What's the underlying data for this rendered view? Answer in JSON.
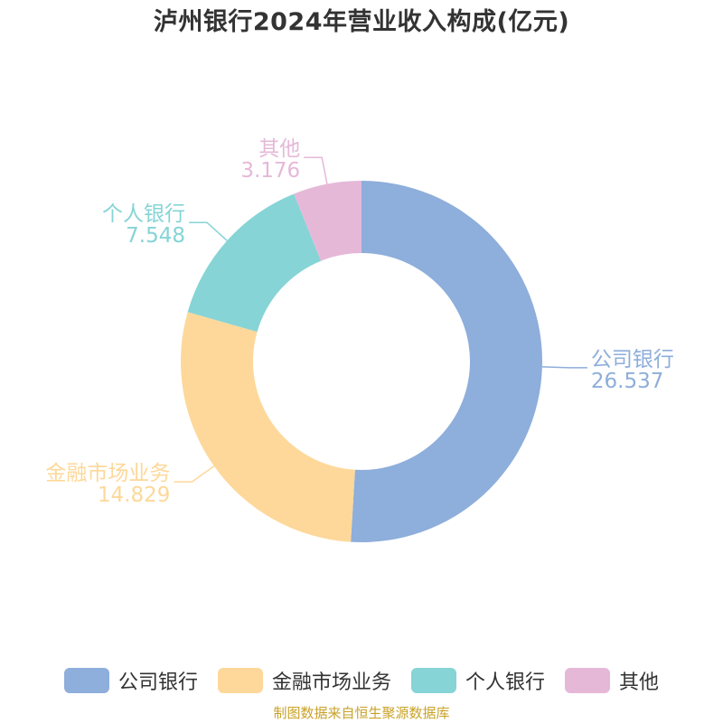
{
  "chart_data": {
    "type": "pie",
    "title": "泸州银行2024年营业收入构成(亿元)",
    "categories": [
      "公司银行",
      "金融市场业务",
      "个人银行",
      "其他"
    ],
    "values": [
      26.537,
      14.829,
      7.548,
      3.176
    ],
    "value_labels": [
      "26.537",
      "14.829",
      "7.548",
      "3.176"
    ],
    "colors": [
      "#8eaedb",
      "#fdd89a",
      "#86d4d6",
      "#e6b8d8"
    ],
    "donut": true,
    "legend": "bottom-center"
  },
  "source": "制图数据来自恒生聚源数据库"
}
